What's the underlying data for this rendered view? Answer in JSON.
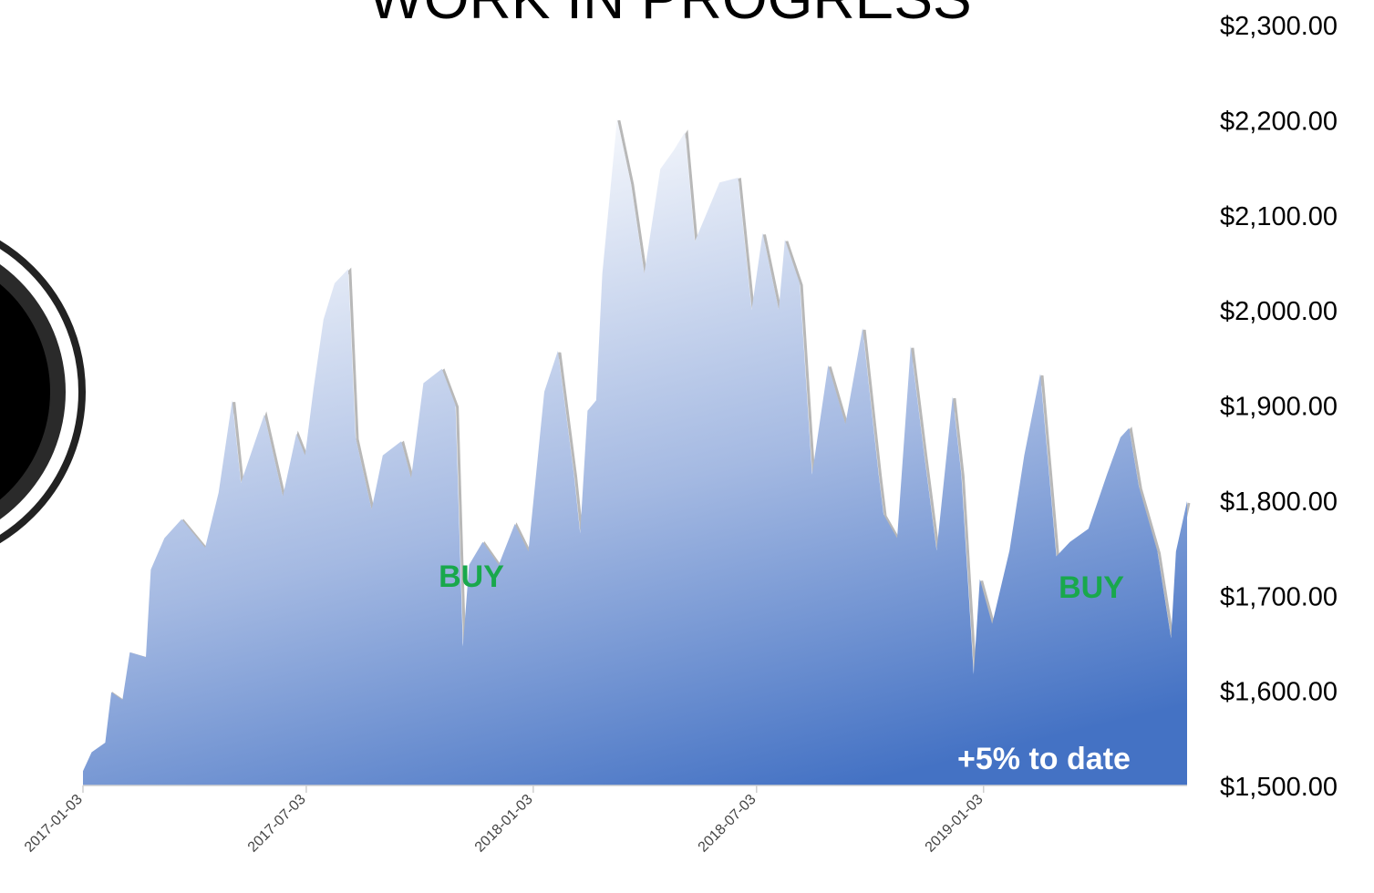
{
  "chart_data": {
    "type": "area",
    "title": "WORK IN PROGRESS",
    "annotations": [
      "BUY",
      "BUY",
      "+5% to date"
    ],
    "color": "#4472c4",
    "x": [
      "2017-01-03",
      "2017-01-10",
      "2017-01-21",
      "2017-01-26",
      "2017-02-04",
      "2017-02-10",
      "2017-02-23",
      "2017-02-27",
      "2017-03-10",
      "2017-03-24",
      "2017-04-12",
      "2017-04-23",
      "2017-05-04",
      "2017-05-11",
      "2017-05-30",
      "2017-06-14",
      "2017-06-25",
      "2017-07-02",
      "2017-07-09",
      "2017-07-17",
      "2017-07-26",
      "2017-08-06",
      "2017-08-12",
      "2017-08-25",
      "2017-09-03",
      "2017-09-18",
      "2017-09-26",
      "2017-10-06",
      "2017-10-21",
      "2017-11-01",
      "2017-11-07",
      "2017-11-12",
      "2017-11-23",
      "2017-12-06",
      "2017-12-19",
      "2017-12-30",
      "2018-01-12",
      "2018-01-23",
      "2018-02-05",
      "2018-02-10",
      "2018-02-16",
      "2018-02-23",
      "2018-02-28",
      "2018-03-12",
      "2018-03-23",
      "2018-04-03",
      "2018-04-16",
      "2018-04-27",
      "2018-05-06",
      "2018-05-14",
      "2018-06-03",
      "2018-06-18",
      "2018-06-29",
      "2018-07-08",
      "2018-07-21",
      "2018-07-26",
      "2018-08-07",
      "2018-08-17",
      "2018-08-30",
      "2018-09-13",
      "2018-09-27",
      "2018-10-10",
      "2018-10-14",
      "2018-10-25",
      "2018-11-05",
      "2018-11-16",
      "2018-11-26",
      "2018-12-09",
      "2018-12-16",
      "2018-12-26",
      "2018-12-31",
      "2019-01-10",
      "2019-01-24",
      "2019-02-05",
      "2019-02-18",
      "2019-03-03",
      "2019-03-14",
      "2019-03-29",
      "2019-04-13",
      "2019-04-24",
      "2019-05-01",
      "2019-05-09",
      "2019-05-24",
      "2019-06-04",
      "2019-06-08",
      "2019-06-17"
    ],
    "values": [
      1515,
      1535,
      1545,
      1598,
      1590,
      1640,
      1635,
      1727,
      1760,
      1780,
      1750,
      1808,
      1905,
      1818,
      1890,
      1804,
      1870,
      1847,
      1918,
      1990,
      2028,
      2043,
      1866,
      1790,
      1847,
      1862,
      1823,
      1923,
      1938,
      1900,
      1646,
      1732,
      1756,
      1732,
      1775,
      1746,
      1914,
      1957,
      1827,
      1765,
      1894,
      1905,
      2038,
      2201,
      2134,
      2038,
      2148,
      2168,
      2187,
      2072,
      2134,
      2139,
      2000,
      2081,
      2000,
      2074,
      2028,
      1827,
      1942,
      1880,
      1981,
      1827,
      1785,
      1760,
      1962,
      1847,
      1747,
      1909,
      1827,
      1617,
      1717,
      1670,
      1747,
      1847,
      1933,
      1741,
      1756,
      1770,
      1827,
      1866,
      1876,
      1814,
      1746,
      1655,
      1746,
      1799
    ],
    "xlim": [
      "2017-01-03",
      "2019-06-17"
    ],
    "xticks": [
      "2017-01-03",
      "2017-07-03",
      "2018-01-03",
      "2018-07-03",
      "2019-01-03"
    ],
    "ylim": [
      1500,
      2300
    ],
    "yticks": [
      {
        "value": 1500,
        "label": "$1,500.00"
      },
      {
        "value": 1600,
        "label": "$1,600.00"
      },
      {
        "value": 1700,
        "label": "$1,700.00"
      },
      {
        "value": 1800,
        "label": "$1,800.00"
      },
      {
        "value": 1900,
        "label": "$1,900.00"
      },
      {
        "value": 2000,
        "label": "$2,000.00"
      },
      {
        "value": 2100,
        "label": "$2,100.00"
      },
      {
        "value": 2200,
        "label": "$2,200.00"
      },
      {
        "value": 2300,
        "label": "$2,300.00"
      }
    ],
    "grid": false
  }
}
